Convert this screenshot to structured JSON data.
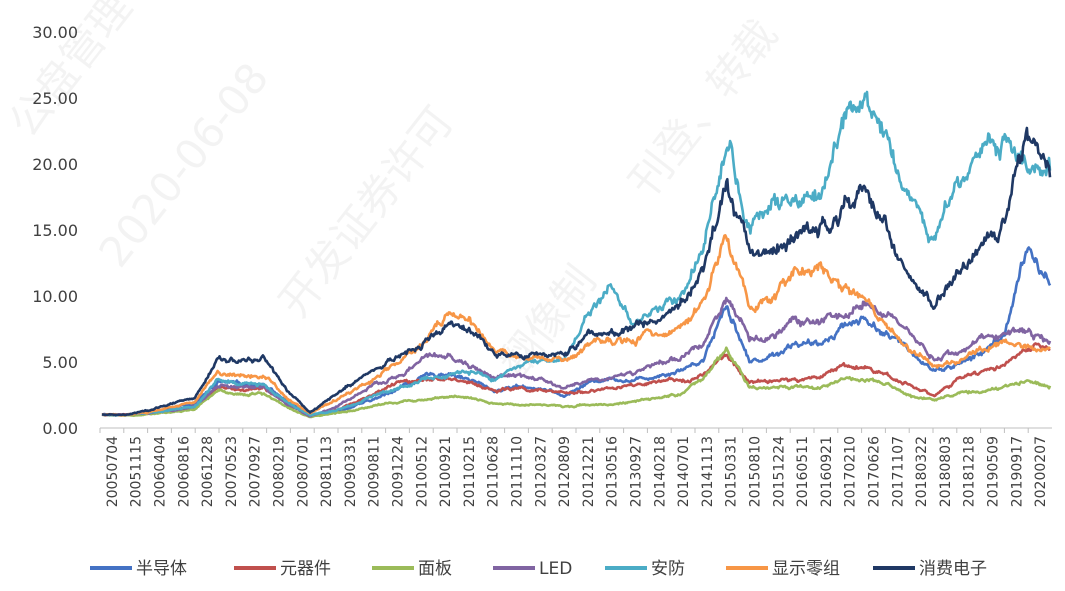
{
  "watermark": [
    "公盘管理",
    "2020-06-08",
    "开发证券许可",
    "翻像制",
    "刊登、转载"
  ],
  "chart_data": {
    "type": "line",
    "title": "",
    "xlabel": "",
    "ylabel": "",
    "ylim": [
      0,
      30
    ],
    "y_ticks": [
      "0.00",
      "5.00",
      "10.00",
      "15.00",
      "20.00",
      "25.00",
      "30.00"
    ],
    "x_ticks": [
      "20050704",
      "20051115",
      "20060404",
      "20060816",
      "20061228",
      "20070523",
      "20070927",
      "20080219",
      "20080701",
      "20081113",
      "20090331",
      "20090811",
      "20091224",
      "20100512",
      "20100921",
      "20110215",
      "20110628",
      "20111110",
      "20120327",
      "20120809",
      "20121221",
      "20130516",
      "20130927",
      "20140218",
      "20140701",
      "20141113",
      "20150331",
      "20150810",
      "20151224",
      "20160511",
      "20160921",
      "20170210",
      "20170626",
      "20171107",
      "20180322",
      "20180803",
      "20181218",
      "20190509",
      "20190917",
      "20200207"
    ],
    "grid": false,
    "legend_position": "bottom",
    "series": [
      {
        "name": "半导体",
        "color": "#4472C4",
        "values": [
          1.0,
          1.0,
          1.1,
          1.5,
          1.8,
          3.5,
          3.3,
          3.4,
          2.0,
          1.0,
          1.2,
          1.7,
          2.3,
          3.2,
          3.9,
          4.2,
          3.6,
          2.8,
          3.2,
          3.0,
          2.4,
          3.4,
          3.8,
          3.6,
          4.0,
          4.4,
          5.2,
          9.5,
          5.0,
          5.5,
          6.5,
          6.2,
          7.8,
          8.3,
          7.0,
          5.8,
          4.4,
          4.8,
          5.6,
          7.0,
          13.5,
          10.8
        ]
      },
      {
        "name": "元器件",
        "color": "#C0504D",
        "values": [
          1.0,
          1.0,
          1.2,
          1.4,
          1.5,
          3.0,
          2.8,
          3.0,
          1.8,
          0.9,
          1.3,
          2.0,
          2.8,
          3.5,
          3.8,
          3.8,
          3.4,
          2.8,
          3.0,
          2.8,
          2.6,
          2.8,
          3.0,
          3.2,
          3.4,
          3.6,
          4.0,
          5.5,
          3.4,
          3.6,
          3.6,
          3.8,
          4.8,
          4.6,
          4.0,
          3.2,
          2.5,
          3.6,
          4.2,
          4.8,
          6.0,
          6.0
        ]
      },
      {
        "name": "面板",
        "color": "#9BBB59",
        "values": [
          1.0,
          0.9,
          1.1,
          1.2,
          1.4,
          2.8,
          2.6,
          2.6,
          1.6,
          0.8,
          1.1,
          1.4,
          1.8,
          2.0,
          2.2,
          2.4,
          2.2,
          1.8,
          1.8,
          1.8,
          1.6,
          1.8,
          1.8,
          2.0,
          2.2,
          2.6,
          3.6,
          6.0,
          3.0,
          3.0,
          3.2,
          3.0,
          3.8,
          3.6,
          3.2,
          2.4,
          2.2,
          2.6,
          2.8,
          3.0,
          3.6,
          3.2
        ]
      },
      {
        "name": "LED",
        "color": "#8064A2",
        "values": [
          1.0,
          1.0,
          1.1,
          1.3,
          1.6,
          3.2,
          3.1,
          3.0,
          1.8,
          0.9,
          1.5,
          2.5,
          3.4,
          4.0,
          5.4,
          5.4,
          4.6,
          3.8,
          4.0,
          3.6,
          3.0,
          3.6,
          3.8,
          4.2,
          4.8,
          5.2,
          6.5,
          10.0,
          6.5,
          7.0,
          8.2,
          8.0,
          8.4,
          9.8,
          8.4,
          6.8,
          5.2,
          5.8,
          6.6,
          7.2,
          7.4,
          6.6
        ]
      },
      {
        "name": "安防",
        "color": "#4BACC6",
        "values": [
          1.0,
          1.0,
          1.1,
          1.4,
          1.6,
          3.6,
          3.3,
          3.3,
          2.0,
          1.0,
          1.3,
          1.9,
          2.6,
          3.2,
          3.8,
          4.0,
          4.2,
          3.6,
          4.8,
          5.0,
          5.2,
          8.6,
          10.6,
          8.0,
          9.0,
          10.2,
          13.5,
          22.0,
          15.0,
          17.0,
          16.6,
          17.4,
          22.5,
          25.0,
          22.5,
          17.0,
          13.8,
          19.5,
          20.5,
          22.0,
          20.0,
          19.5
        ]
      },
      {
        "name": "显示零组",
        "color": "#F79646",
        "values": [
          1.0,
          1.0,
          1.2,
          1.6,
          2.0,
          4.2,
          4.0,
          4.0,
          2.3,
          1.1,
          2.0,
          3.0,
          4.0,
          5.4,
          6.6,
          8.8,
          7.8,
          5.8,
          5.4,
          5.2,
          5.0,
          6.2,
          6.4,
          6.6,
          7.2,
          7.8,
          9.2,
          15.0,
          9.0,
          9.8,
          11.8,
          12.4,
          10.5,
          9.8,
          7.8,
          5.8,
          4.6,
          5.2,
          6.0,
          6.4,
          6.2,
          6.0
        ]
      },
      {
        "name": "消费电子",
        "color": "#1F3864",
        "values": [
          1.0,
          1.0,
          1.3,
          1.8,
          2.2,
          5.2,
          5.0,
          5.4,
          2.8,
          1.2,
          2.4,
          3.6,
          4.6,
          5.6,
          6.6,
          8.2,
          7.2,
          5.6,
          5.6,
          5.4,
          5.6,
          7.0,
          7.2,
          7.4,
          8.4,
          9.4,
          12.0,
          19.0,
          13.5,
          13.2,
          14.5,
          15.0,
          16.5,
          18.0,
          14.5,
          11.0,
          9.0,
          11.5,
          13.2,
          15.5,
          22.0,
          19.0
        ]
      }
    ]
  }
}
